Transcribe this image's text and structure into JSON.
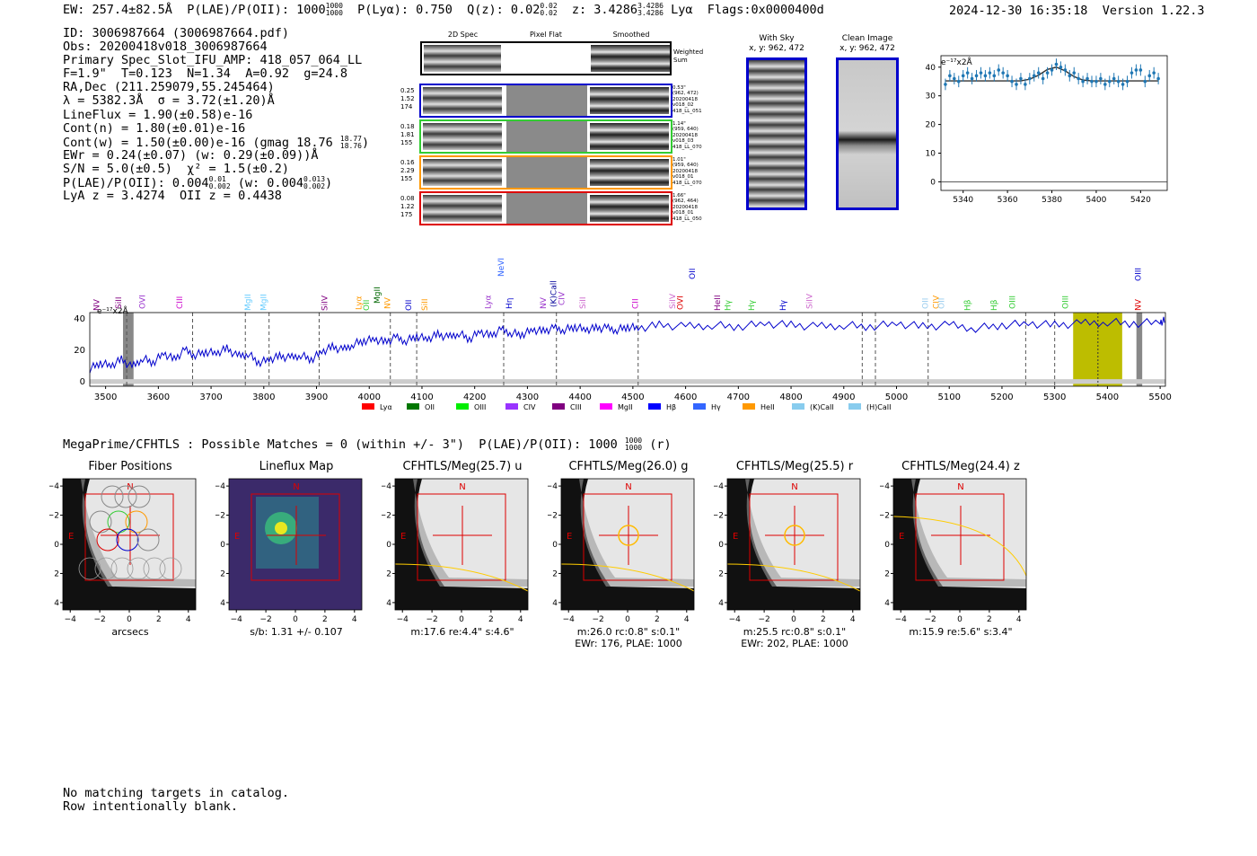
{
  "header": {
    "ew": "EW: 257.4±82.5Å",
    "plae_label": "P(LAE)/P(OII): 1000",
    "plae_hi": "1000",
    "plae_lo": "1000",
    "plya": "P(Lyα): 0.750",
    "qz_label": "Q(z): 0.02",
    "qz_hi": "0.02",
    "qz_lo": "0.02",
    "z_label": "z: 3.4286",
    "z_hi": "3.4286",
    "z_lo": "3.4286",
    "line": "Lyα",
    "flags": "Flags:0x0000400d",
    "timestamp": "2024-12-30 16:35:18",
    "version": "Version 1.22.3"
  },
  "info": {
    "id": "ID: 3006987664 (3006987664.pdf)",
    "obs": "Obs: 20200418v018_3006987664",
    "slot": "Primary Spec_Slot_IFU_AMP: 418_057_064_LL",
    "fit": "F=1.9\"  T=0.123  N=1.34  A=0.92  g=24.8",
    "radec": "RA,Dec (211.259079,55.245464)",
    "lambda": "λ = 5382.3Å  σ = 3.72(±1.20)Å",
    "lineflux": "LineFlux = 1.90(±0.58)e-16",
    "contn": "Cont(n) = 1.80(±0.01)e-16",
    "contw": "Cont(w) = 1.50(±0.00)e-16 (gmag 18.76",
    "contw_hi": "18.77",
    "contw_lo": "18.76",
    "ewr": "EWr = 0.24(±0.07) (w: 0.29(±0.09))Å",
    "sn": "S/N = 5.0(±0.5)  χ² = 1.5(±0.2)",
    "plae2": "P(LAE)/P(OII): 0.004",
    "plae2_hi": "0.01",
    "plae2_lo": "0.002",
    "plae2_w": "(w: 0.004",
    "plae2_w_hi": "0.013",
    "plae2_w_lo": "0.002",
    "lya_z": "LyA z = 3.4274  OII z = 0.4438"
  },
  "cutouts": {
    "col_titles": [
      "2D Spec",
      "Pixel Flat",
      "Smoothed"
    ],
    "weighted_sum": "Weighted Sum",
    "rows": [
      {
        "stats": [
          "0.25",
          "1.52",
          "174"
        ],
        "meta": [
          "0.53\"",
          "(962, 472)",
          "20200418",
          "v018_02",
          "418_LL_051"
        ],
        "color": "#0000cc"
      },
      {
        "stats": [
          "0.18",
          "1.81",
          "155"
        ],
        "meta": [
          "1.14\"",
          "(959, 640)",
          "20200418",
          "v018_03",
          "418_LL_070"
        ],
        "color": "#33cc33"
      },
      {
        "stats": [
          "0.16",
          "2.29",
          "155"
        ],
        "meta": [
          "1.01\"",
          "(959, 640)",
          "20200418",
          "v018_01",
          "418_LL_070"
        ],
        "color": "#ff9900"
      },
      {
        "stats": [
          "0.08",
          "1.22",
          "175"
        ],
        "meta": [
          "1.66\"",
          "(962, 464)",
          "20200418",
          "v018_01",
          "418_LL_050"
        ],
        "color": "#dd0000"
      }
    ],
    "with_sky_title": "With Sky",
    "with_sky_coords": "x, y: 962, 472",
    "clean_title": "Clean Image",
    "clean_coords": "x, y: 962, 472"
  },
  "chart_data": [
    {
      "type": "line",
      "title": "",
      "ylabel": "e⁻¹⁷x2Å",
      "xlim": [
        5330,
        5432
      ],
      "ylim": [
        -3,
        44
      ],
      "xticks": [
        5340,
        5360,
        5380,
        5400,
        5420
      ],
      "yticks": [
        0,
        10,
        20,
        30,
        40
      ],
      "series": [
        {
          "name": "data",
          "x": [
            5332,
            5334,
            5336,
            5338,
            5340,
            5342,
            5344,
            5346,
            5348,
            5350,
            5352,
            5354,
            5356,
            5358,
            5360,
            5362,
            5364,
            5366,
            5368,
            5370,
            5372,
            5374,
            5376,
            5378,
            5380,
            5382,
            5384,
            5386,
            5388,
            5390,
            5392,
            5394,
            5396,
            5398,
            5400,
            5402,
            5404,
            5406,
            5408,
            5410,
            5412,
            5414,
            5416,
            5418,
            5420,
            5422,
            5424,
            5426,
            5428
          ],
          "y": [
            34,
            37,
            36,
            35,
            37,
            38,
            36,
            37,
            38,
            37,
            38,
            37,
            39,
            38,
            37,
            35,
            34,
            36,
            34,
            36,
            37,
            38,
            36,
            38,
            39,
            41,
            40,
            39,
            37,
            38,
            36,
            35,
            36,
            35,
            35,
            36,
            34,
            35,
            36,
            35,
            34,
            35,
            38,
            39,
            39,
            35,
            37,
            38,
            36
          ]
        },
        {
          "name": "fit",
          "x": [
            5332,
            5366,
            5370,
            5374,
            5378,
            5382,
            5386,
            5390,
            5394,
            5398,
            5428
          ],
          "y": [
            35.2,
            35.2,
            35.8,
            37.2,
            39.2,
            40.0,
            38.7,
            36.7,
            35.5,
            35.2,
            35.2
          ]
        }
      ]
    },
    {
      "type": "line",
      "title": "",
      "ylabel": "e⁻¹⁷x2Å",
      "xlim": [
        3470,
        5510
      ],
      "ylim": [
        -3,
        44
      ],
      "xticks": [
        3500,
        3600,
        3700,
        3800,
        3900,
        4000,
        4100,
        4200,
        4300,
        4400,
        4500,
        4600,
        4700,
        4800,
        4900,
        5000,
        5100,
        5200,
        5300,
        5400,
        5500
      ],
      "yticks": [
        0,
        20,
        40
      ],
      "series": [
        {
          "name": "spectrum",
          "x": [
            3470,
            3490,
            3510,
            3530,
            3550,
            3570,
            3590,
            3610,
            3630,
            3650,
            3670,
            3690,
            3710,
            3730,
            3750,
            3770,
            3790,
            3810,
            3830,
            3850,
            3870,
            3890,
            3910,
            3930,
            3950,
            3970,
            3990,
            4010,
            4030,
            4050,
            4070,
            4090,
            4110,
            4130,
            4150,
            4170,
            4190,
            4210,
            4230,
            4250,
            4270,
            4290,
            4310,
            4330,
            4350,
            4370,
            4390,
            4410,
            4430,
            4450,
            4470,
            4490,
            4510,
            4550,
            4600,
            4650,
            4700,
            4750,
            4800,
            4850,
            4900,
            4950,
            5000,
            5050,
            5100,
            5150,
            5200,
            5250,
            5300,
            5350,
            5400,
            5450,
            5500,
            5510
          ],
          "y": [
            8,
            12,
            10,
            14,
            9,
            15,
            12,
            18,
            14,
            20,
            17,
            19,
            18,
            21,
            16,
            18,
            12,
            14,
            16,
            15,
            17,
            14,
            19,
            22,
            20,
            24,
            26,
            27,
            25,
            28,
            26,
            29,
            27,
            30,
            28,
            31,
            27,
            32,
            29,
            33,
            31,
            30,
            33,
            32,
            34,
            33,
            35,
            33,
            34,
            34,
            33,
            35,
            34,
            36,
            35,
            36,
            35,
            37,
            36,
            35,
            36,
            35,
            37,
            35,
            36,
            34,
            36,
            37,
            36,
            37,
            38,
            37,
            38,
            39
          ]
        }
      ],
      "lines": [
        "NV",
        "SiII",
        "OVI",
        "CIII",
        "MgII",
        "MgII",
        "SiIV",
        "Lyα",
        "OII",
        "MgII",
        "NV",
        "OII",
        "SiII",
        "Lyα",
        "Hη",
        "NeVI",
        "NV",
        "(K)Call",
        "CIV",
        "SiII",
        "CII",
        "SiIV",
        "OVI",
        "OII",
        "HeII",
        "Hγ",
        "Hγ",
        "Hγ",
        "SiIV",
        "OII",
        "CIV",
        "OII",
        "Hβ",
        "Hβ",
        "OIII",
        "OIII",
        "NV",
        "OIII"
      ],
      "legend": [
        "Lyα",
        "OII",
        "OIII",
        "CIV",
        "CIII",
        "MgII",
        "Hβ",
        "Hγ",
        "HeII",
        "(K)CaII",
        "(H)CaII"
      ]
    }
  ],
  "section_title": "MegaPrime/CFHTLS : Possible Matches = 0 (within +/- 3\")  P(LAE)/P(OII): 1000",
  "section_title_hi": "1000",
  "section_title_lo": "1000",
  "section_title_tail": "(r)",
  "panels": [
    {
      "title": "Fiber Positions",
      "caption1": "arcsecs",
      "caption2": ""
    },
    {
      "title": "Lineflux Map",
      "caption1": "s/b: 1.31 +/- 0.107",
      "caption2": ""
    },
    {
      "title": "CFHTLS/Meg(25.7) u",
      "caption1": "m:17.6  re:4.4\"  s:4.6\"",
      "caption2": ""
    },
    {
      "title": "CFHTLS/Meg(26.0) g",
      "caption1": "m:26.0 rc:0.8\"  s:0.1\"",
      "caption2": "EWr: 176, PLAE: 1000"
    },
    {
      "title": "CFHTLS/Meg(25.5) r",
      "caption1": "m:25.5 rc:0.8\"  s:0.1\"",
      "caption2": "EWr: 202, PLAE: 1000"
    },
    {
      "title": "CFHTLS/Meg(24.4) z",
      "caption1": "m:15.9  re:5.6\"  s:3.4\"",
      "caption2": ""
    }
  ],
  "panel_axis_ticks": [
    "−4",
    "−2",
    "0",
    "2",
    "4"
  ],
  "panel_marks": {
    "north": "N",
    "east": "E"
  },
  "footer": {
    "line1": "No matching targets in catalog.",
    "line2": "Row intentionally blank."
  },
  "colors": {
    "spectrum": "#0000cc",
    "fit": "#1f77b4",
    "marker_box": "#dd0000",
    "highlight": "#bdbd00"
  }
}
